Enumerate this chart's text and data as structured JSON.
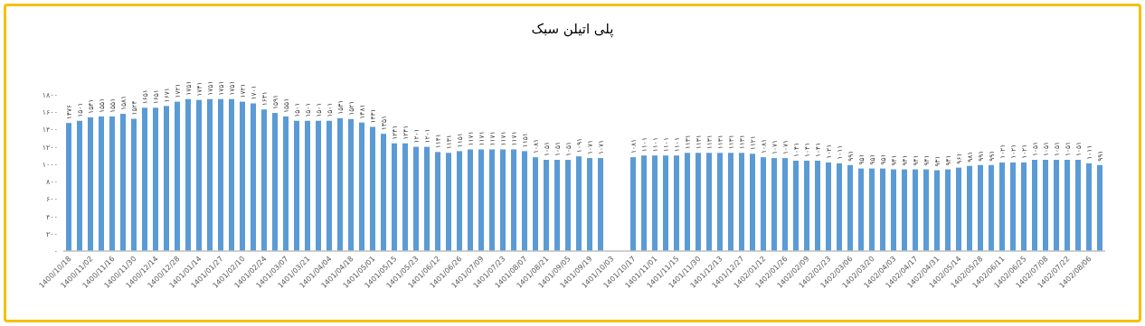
{
  "chart_data": {
    "type": "bar",
    "title": "پلی اتیلن سبک",
    "categories": [
      "1400/10/18",
      null,
      "1400/11/02",
      null,
      "1400/11/16",
      null,
      "1400/11/30",
      null,
      "1400/12/14",
      null,
      "1400/12/28",
      null,
      "1401/01/14",
      null,
      "1401/01/27",
      null,
      "1401/02/10",
      null,
      "1401/02/24",
      null,
      "1401/03/07",
      null,
      "1401/03/21",
      null,
      "1401/04/04",
      null,
      "1401/04/18",
      null,
      "1401/05/01",
      null,
      "1401/05/15",
      null,
      "1401/05/23",
      null,
      "1401/06/12",
      null,
      "1401/06/26",
      null,
      "1401/07/09",
      null,
      "1401/07/23",
      null,
      "1401/08/07",
      null,
      "1401/08/21",
      null,
      "1401/09/05",
      null,
      "1401/09/19",
      null,
      "1401/10/03",
      null,
      "1401/10/17",
      null,
      "1401/11/01",
      null,
      "1401/11/15",
      null,
      "1401/11/30",
      null,
      "1401/12/13",
      null,
      "1401/12/27",
      null,
      "1402/01/12",
      null,
      "1402/01/26",
      null,
      "1402/02/09",
      null,
      "1402/02/23",
      null,
      "1402/03/06",
      null,
      "1402/03/20",
      null,
      "1402/04/03",
      null,
      "1402/04/17",
      null,
      "1402/04/31",
      null,
      "1402/05/14",
      null,
      "1402/05/28",
      null,
      "1402/06/11",
      null,
      "1402/06/25",
      null,
      "1402/07/08",
      null,
      "1402/07/22",
      null,
      "1402/08/06",
      null
    ],
    "values": [
      1476,
      1501,
      1541,
      1551,
      1551,
      1581,
      1524,
      1651,
      1651,
      1671,
      1721,
      1751,
      1741,
      1751,
      1751,
      1751,
      1721,
      1701,
      1631,
      1591,
      1551,
      1501,
      1501,
      1501,
      1501,
      1531,
      1521,
      1481,
      1431,
      1351,
      1241,
      1241,
      1201,
      1201,
      1141,
      1131,
      1151,
      1171,
      1171,
      1171,
      1171,
      1171,
      1151,
      1081,
      1051,
      1051,
      1051,
      1091,
      1071,
      1071,
      null,
      null,
      1081,
      1101,
      1101,
      1101,
      1101,
      1131,
      1131,
      1131,
      1131,
      1131,
      1131,
      1121,
      1081,
      1071,
      1071,
      1041,
      1041,
      1041,
      1021,
      1011,
      991,
      951,
      951,
      951,
      941,
      941,
      941,
      941,
      931,
      941,
      961,
      981,
      991,
      991,
      1021,
      1021,
      1021,
      1051,
      1051,
      1051,
      1051,
      1051,
      1011,
      991
    ],
    "value_labels": [
      "۱۴۷۶",
      "۱۵۰۱",
      "۱۵۴۱",
      "۱۵۵۱",
      "۱۵۵۱",
      "۱۵۸۱",
      "۱۵۲۴",
      "۱۶۵۱",
      "۱۶۵۱",
      "۱۶۷۱",
      "۱۷۲۱",
      "۱۷۵۱",
      "۱۷۴۱",
      "۱۷۵۱",
      "۱۷۵۱",
      "۱۷۵۱",
      "۱۷۲۱",
      "۱۷۰۱",
      "۱۶۳۱",
      "۱۵۹۱",
      "۱۵۵۱",
      "۱۵۰۱",
      "۱۵۰۱",
      "۱۵۰۱",
      "۱۵۰۱",
      "۱۵۳۱",
      "۱۵۲۱",
      "۱۴۸۱",
      "۱۴۳۱",
      "۱۳۵۱",
      "۱۲۴۱",
      "۱۲۴۱",
      "۱۲۰۱",
      "۱۲۰۱",
      "۱۱۴۱",
      "۱۱۳۱",
      "۱۱۵۱",
      "۱۱۷۱",
      "۱۱۷۱",
      "۱۱۷۱",
      "۱۱۷۱",
      "۱۱۷۱",
      "۱۱۵۱",
      "۱۰۸۱",
      "۱۰۵۱",
      "۱۰۵۱",
      "۱۰۵۱",
      "۱۰۹۱",
      "۱۰۷۱",
      "۱۰۷۱",
      null,
      null,
      "۱۰۸۱",
      "۱۱۰۱",
      "۱۱۰۱",
      "۱۱۰۱",
      "۱۱۰۱",
      "۱۱۳۱",
      "۱۱۳۱",
      "۱۱۳۱",
      "۱۱۳۱",
      "۱۱۳۱",
      "۱۱۳۱",
      "۱۱۲۱",
      "۱۰۸۱",
      "۱۰۷۱",
      "۱۰۷۱",
      "۱۰۴۱",
      "۱۰۴۱",
      "۱۰۴۱",
      "۱۰۲۱",
      "۱۰۱۱",
      "۹۹۱",
      "۹۵۱",
      "۹۵۱",
      "۹۵۱",
      "۹۴۱",
      "۹۴۱",
      "۹۴۱",
      "۹۴۱",
      "۹۳۱",
      "۹۴۱",
      "۹۶۱",
      "۹۸۱",
      "۹۹۱",
      "۹۹۱",
      "۱۰۲۱",
      "۱۰۲۱",
      "۱۰۲۱",
      "۱۰۵۱",
      "۱۰۵۱",
      "۱۰۵۱",
      "۱۰۵۱",
      "۱۰۵۱",
      "۱۰۱۱",
      "۹۹۱"
    ],
    "color": "#5b9bd5",
    "ylim": [
      0,
      1800
    ],
    "yticks": [
      {
        "value": 0,
        "label": "۰"
      },
      {
        "value": 200,
        "label": "۲۰۰"
      },
      {
        "value": 400,
        "label": "۴۰۰"
      },
      {
        "value": 600,
        "label": "۶۰۰"
      },
      {
        "value": 800,
        "label": "۸۰۰"
      },
      {
        "value": 1000,
        "label": "۱۰۰۰"
      },
      {
        "value": 1200,
        "label": "۱۲۰۰"
      },
      {
        "value": 1400,
        "label": "۱۴۰۰"
      },
      {
        "value": 1600,
        "label": "۱۶۰۰"
      },
      {
        "value": 1800,
        "label": "۱۸۰۰"
      }
    ],
    "grid": false
  }
}
